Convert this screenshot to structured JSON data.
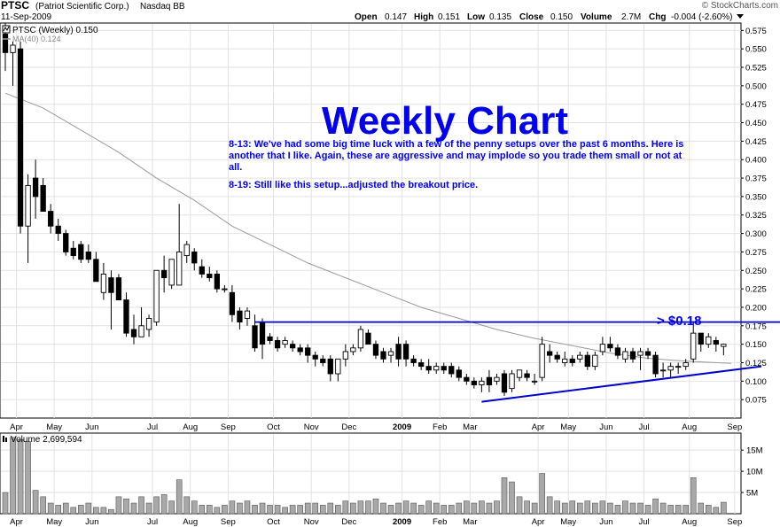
{
  "header": {
    "ticker": "PTSC",
    "company": "(Patriot Scientific Corp.)",
    "exchange": "Nasdaq BB",
    "date": "11-Sep-2009",
    "brand": "© StockCharts.com",
    "quote": {
      "open_label": "Open",
      "open": "0.147",
      "high_label": "High",
      "high": "0.151",
      "low_label": "Low",
      "low": "0.135",
      "close_label": "Close",
      "close": "0.150",
      "volume_label": "Volume",
      "volume": "2.7M",
      "chg_label": "Chg",
      "chg": "-0.004 (-2.60%)"
    }
  },
  "legend": {
    "price": "PTSC (Weekly) 0.150",
    "ma": "MA(40) 0.124",
    "volume": "Volume 2,699,594"
  },
  "annotation": {
    "title": "Weekly Chart",
    "note1": "8-13: We've had some big time luck with a few of the penny setups over the past 6 months. Here is another that I like. Again, these are aggressive and may implode so you trade them small or not at all.",
    "note2": "8-19: Still like this setup...adjusted the breakout price.",
    "breakout_label": "> $0.18"
  },
  "colors": {
    "text_blue": "#0000ee",
    "line_blue": "#0000cc",
    "ma_gray": "#9a9a9a",
    "candle": "#000000",
    "volume_bar": "#a8a8a8",
    "grid": "#e2e2e2"
  },
  "chart_data": {
    "type": "candlestick",
    "price_axis": {
      "ylim": [
        0.05,
        0.585
      ],
      "ticks": [
        "0.575",
        "0.550",
        "0.525",
        "0.500",
        "0.475",
        "0.450",
        "0.425",
        "0.400",
        "0.375",
        "0.350",
        "0.325",
        "0.300",
        "0.275",
        "0.250",
        "0.225",
        "0.200",
        "0.175",
        "0.150",
        "0.125",
        "0.100",
        "0.075"
      ]
    },
    "volume_axis": {
      "ylim": [
        0,
        19000000
      ],
      "ticks": [
        {
          "label": "15M",
          "value": 15000000
        },
        {
          "label": "10M",
          "value": 10000000
        },
        {
          "label": "5M",
          "value": 5000000
        }
      ]
    },
    "x_labels": [
      {
        "label": "Apr",
        "week": 1
      },
      {
        "label": "May",
        "week": 6
      },
      {
        "label": "Jun",
        "week": 11
      },
      {
        "label": "Jul",
        "week": 19
      },
      {
        "label": "Aug",
        "week": 24
      },
      {
        "label": "Sep",
        "week": 29
      },
      {
        "label": "Oct",
        "week": 35
      },
      {
        "label": "Nov",
        "week": 40
      },
      {
        "label": "Dec",
        "week": 45
      },
      {
        "label": "2009",
        "week": 52,
        "bold": true
      },
      {
        "label": "Feb",
        "week": 57
      },
      {
        "label": "Mar",
        "week": 61
      },
      {
        "label": "Apr",
        "week": 70
      },
      {
        "label": "May",
        "week": 74
      },
      {
        "label": "Jun",
        "week": 79
      },
      {
        "label": "Jul",
        "week": 84
      },
      {
        "label": "Aug",
        "week": 90
      },
      {
        "label": "Sep",
        "week": 96
      }
    ],
    "weeks": [
      {
        "o": 0.57,
        "h": 0.585,
        "l": 0.52,
        "c": 0.545,
        "v": 5.0
      },
      {
        "o": 0.545,
        "h": 0.56,
        "l": 0.5,
        "c": 0.555,
        "v": 18.0
      },
      {
        "o": 0.55,
        "h": 0.56,
        "l": 0.3,
        "c": 0.31,
        "v": 17.5
      },
      {
        "o": 0.31,
        "h": 0.38,
        "l": 0.26,
        "c": 0.365,
        "v": 17.0
      },
      {
        "o": 0.375,
        "h": 0.4,
        "l": 0.32,
        "c": 0.35,
        "v": 5.5
      },
      {
        "o": 0.365,
        "h": 0.375,
        "l": 0.33,
        "c": 0.33,
        "v": 4.0
      },
      {
        "o": 0.33,
        "h": 0.34,
        "l": 0.3,
        "c": 0.31,
        "v": 2.5
      },
      {
        "o": 0.31,
        "h": 0.32,
        "l": 0.29,
        "c": 0.3,
        "v": 2.0
      },
      {
        "o": 0.3,
        "h": 0.305,
        "l": 0.27,
        "c": 0.275,
        "v": 2.5
      },
      {
        "o": 0.28,
        "h": 0.29,
        "l": 0.265,
        "c": 0.27,
        "v": 1.5
      },
      {
        "o": 0.285,
        "h": 0.29,
        "l": 0.26,
        "c": 0.265,
        "v": 2.0
      },
      {
        "o": 0.275,
        "h": 0.285,
        "l": 0.26,
        "c": 0.265,
        "v": 2.5
      },
      {
        "o": 0.265,
        "h": 0.275,
        "l": 0.235,
        "c": 0.235,
        "v": 1.5
      },
      {
        "o": 0.22,
        "h": 0.26,
        "l": 0.21,
        "c": 0.245,
        "v": 1.5
      },
      {
        "o": 0.24,
        "h": 0.25,
        "l": 0.17,
        "c": 0.22,
        "v": 1.0
      },
      {
        "o": 0.24,
        "h": 0.245,
        "l": 0.21,
        "c": 0.21,
        "v": 4.0
      },
      {
        "o": 0.21,
        "h": 0.22,
        "l": 0.16,
        "c": 0.165,
        "v": 3.5
      },
      {
        "o": 0.17,
        "h": 0.19,
        "l": 0.15,
        "c": 0.16,
        "v": 2.5
      },
      {
        "o": 0.16,
        "h": 0.2,
        "l": 0.16,
        "c": 0.175,
        "v": 4.0
      },
      {
        "o": 0.17,
        "h": 0.19,
        "l": 0.16,
        "c": 0.185,
        "v": 2.5
      },
      {
        "o": 0.18,
        "h": 0.25,
        "l": 0.175,
        "c": 0.25,
        "v": 4.0
      },
      {
        "o": 0.25,
        "h": 0.27,
        "l": 0.22,
        "c": 0.24,
        "v": 4.5
      },
      {
        "o": 0.23,
        "h": 0.26,
        "l": 0.225,
        "c": 0.265,
        "v": 3.0
      },
      {
        "o": 0.23,
        "h": 0.34,
        "l": 0.23,
        "c": 0.275,
        "v": 8.0
      },
      {
        "o": 0.27,
        "h": 0.29,
        "l": 0.26,
        "c": 0.285,
        "v": 4.0
      },
      {
        "o": 0.275,
        "h": 0.28,
        "l": 0.25,
        "c": 0.26,
        "v": 3.0
      },
      {
        "o": 0.255,
        "h": 0.265,
        "l": 0.24,
        "c": 0.245,
        "v": 2.0
      },
      {
        "o": 0.245,
        "h": 0.255,
        "l": 0.235,
        "c": 0.24,
        "v": 2.0
      },
      {
        "o": 0.245,
        "h": 0.25,
        "l": 0.22,
        "c": 0.225,
        "v": 1.5
      },
      {
        "o": 0.225,
        "h": 0.23,
        "l": 0.22,
        "c": 0.225,
        "v": 2.0
      },
      {
        "o": 0.22,
        "h": 0.23,
        "l": 0.18,
        "c": 0.19,
        "v": 3.0
      },
      {
        "o": 0.195,
        "h": 0.2,
        "l": 0.17,
        "c": 0.18,
        "v": 2.5
      },
      {
        "o": 0.185,
        "h": 0.2,
        "l": 0.175,
        "c": 0.195,
        "v": 3.0
      },
      {
        "o": 0.175,
        "h": 0.19,
        "l": 0.14,
        "c": 0.145,
        "v": 2.0
      },
      {
        "o": 0.18,
        "h": 0.185,
        "l": 0.13,
        "c": 0.15,
        "v": 2.5
      },
      {
        "o": 0.16,
        "h": 0.165,
        "l": 0.15,
        "c": 0.155,
        "v": 2.0
      },
      {
        "o": 0.155,
        "h": 0.16,
        "l": 0.14,
        "c": 0.145,
        "v": 2.0
      },
      {
        "o": 0.15,
        "h": 0.16,
        "l": 0.145,
        "c": 0.155,
        "v": 1.5
      },
      {
        "o": 0.15,
        "h": 0.155,
        "l": 0.14,
        "c": 0.145,
        "v": 2.0
      },
      {
        "o": 0.145,
        "h": 0.15,
        "l": 0.135,
        "c": 0.14,
        "v": 2.0
      },
      {
        "o": 0.145,
        "h": 0.15,
        "l": 0.125,
        "c": 0.135,
        "v": 2.5
      },
      {
        "o": 0.135,
        "h": 0.14,
        "l": 0.12,
        "c": 0.13,
        "v": 2.5
      },
      {
        "o": 0.13,
        "h": 0.135,
        "l": 0.12,
        "c": 0.125,
        "v": 2.0
      },
      {
        "o": 0.13,
        "h": 0.135,
        "l": 0.1,
        "c": 0.11,
        "v": 2.5
      },
      {
        "o": 0.11,
        "h": 0.13,
        "l": 0.1,
        "c": 0.13,
        "v": 2.0
      },
      {
        "o": 0.13,
        "h": 0.15,
        "l": 0.12,
        "c": 0.14,
        "v": 3.0
      },
      {
        "o": 0.14,
        "h": 0.15,
        "l": 0.135,
        "c": 0.145,
        "v": 2.5
      },
      {
        "o": 0.145,
        "h": 0.175,
        "l": 0.14,
        "c": 0.17,
        "v": 3.0
      },
      {
        "o": 0.165,
        "h": 0.17,
        "l": 0.15,
        "c": 0.15,
        "v": 3.0
      },
      {
        "o": 0.15,
        "h": 0.155,
        "l": 0.13,
        "c": 0.135,
        "v": 3.5
      },
      {
        "o": 0.14,
        "h": 0.145,
        "l": 0.125,
        "c": 0.13,
        "v": 2.5
      },
      {
        "o": 0.135,
        "h": 0.145,
        "l": 0.125,
        "c": 0.14,
        "v": 2.0
      },
      {
        "o": 0.15,
        "h": 0.16,
        "l": 0.12,
        "c": 0.13,
        "v": 2.5
      },
      {
        "o": 0.15,
        "h": 0.155,
        "l": 0.12,
        "c": 0.13,
        "v": 3.0
      },
      {
        "o": 0.13,
        "h": 0.135,
        "l": 0.12,
        "c": 0.125,
        "v": 2.5
      },
      {
        "o": 0.125,
        "h": 0.13,
        "l": 0.115,
        "c": 0.12,
        "v": 2.0
      },
      {
        "o": 0.12,
        "h": 0.13,
        "l": 0.11,
        "c": 0.115,
        "v": 3.0
      },
      {
        "o": 0.115,
        "h": 0.125,
        "l": 0.11,
        "c": 0.12,
        "v": 2.5
      },
      {
        "o": 0.12,
        "h": 0.125,
        "l": 0.11,
        "c": 0.115,
        "v": 2.0
      },
      {
        "o": 0.12,
        "h": 0.125,
        "l": 0.105,
        "c": 0.11,
        "v": 2.0
      },
      {
        "o": 0.115,
        "h": 0.12,
        "l": 0.1,
        "c": 0.105,
        "v": 2.5
      },
      {
        "o": 0.105,
        "h": 0.11,
        "l": 0.095,
        "c": 0.1,
        "v": 3.0
      },
      {
        "o": 0.1,
        "h": 0.105,
        "l": 0.09,
        "c": 0.095,
        "v": 2.5
      },
      {
        "o": 0.095,
        "h": 0.105,
        "l": 0.085,
        "c": 0.1,
        "v": 3.0
      },
      {
        "o": 0.105,
        "h": 0.115,
        "l": 0.085,
        "c": 0.095,
        "v": 2.5
      },
      {
        "o": 0.1,
        "h": 0.11,
        "l": 0.095,
        "c": 0.105,
        "v": 3.0
      },
      {
        "o": 0.11,
        "h": 0.115,
        "l": 0.08,
        "c": 0.085,
        "v": 8.5
      },
      {
        "o": 0.09,
        "h": 0.115,
        "l": 0.085,
        "c": 0.11,
        "v": 7.5
      },
      {
        "o": 0.105,
        "h": 0.115,
        "l": 0.1,
        "c": 0.115,
        "v": 4.0
      },
      {
        "o": 0.11,
        "h": 0.115,
        "l": 0.1,
        "c": 0.105,
        "v": 3.0
      },
      {
        "o": 0.1,
        "h": 0.11,
        "l": 0.095,
        "c": 0.1,
        "v": 2.5
      },
      {
        "o": 0.105,
        "h": 0.16,
        "l": 0.1,
        "c": 0.15,
        "v": 9.5
      },
      {
        "o": 0.14,
        "h": 0.15,
        "l": 0.125,
        "c": 0.135,
        "v": 4.0
      },
      {
        "o": 0.135,
        "h": 0.14,
        "l": 0.125,
        "c": 0.13,
        "v": 3.0
      },
      {
        "o": 0.125,
        "h": 0.14,
        "l": 0.12,
        "c": 0.13,
        "v": 2.5
      },
      {
        "o": 0.13,
        "h": 0.135,
        "l": 0.12,
        "c": 0.125,
        "v": 3.0
      },
      {
        "o": 0.13,
        "h": 0.14,
        "l": 0.125,
        "c": 0.135,
        "v": 2.5
      },
      {
        "o": 0.135,
        "h": 0.14,
        "l": 0.115,
        "c": 0.12,
        "v": 3.0
      },
      {
        "o": 0.12,
        "h": 0.14,
        "l": 0.115,
        "c": 0.135,
        "v": 2.5
      },
      {
        "o": 0.14,
        "h": 0.16,
        "l": 0.135,
        "c": 0.15,
        "v": 3.0
      },
      {
        "o": 0.15,
        "h": 0.16,
        "l": 0.14,
        "c": 0.145,
        "v": 2.5
      },
      {
        "o": 0.145,
        "h": 0.15,
        "l": 0.13,
        "c": 0.135,
        "v": 2.0
      },
      {
        "o": 0.13,
        "h": 0.145,
        "l": 0.125,
        "c": 0.14,
        "v": 3.0
      },
      {
        "o": 0.14,
        "h": 0.145,
        "l": 0.125,
        "c": 0.13,
        "v": 2.5
      },
      {
        "o": 0.135,
        "h": 0.145,
        "l": 0.115,
        "c": 0.14,
        "v": 2.5
      },
      {
        "o": 0.14,
        "h": 0.145,
        "l": 0.13,
        "c": 0.135,
        "v": 2.0
      },
      {
        "o": 0.135,
        "h": 0.14,
        "l": 0.105,
        "c": 0.11,
        "v": 3.5
      },
      {
        "o": 0.115,
        "h": 0.125,
        "l": 0.105,
        "c": 0.115,
        "v": 2.5
      },
      {
        "o": 0.115,
        "h": 0.125,
        "l": 0.105,
        "c": 0.12,
        "v": 2.0
      },
      {
        "o": 0.12,
        "h": 0.125,
        "l": 0.11,
        "c": 0.12,
        "v": 2.0
      },
      {
        "o": 0.12,
        "h": 0.13,
        "l": 0.115,
        "c": 0.125,
        "v": 2.0
      },
      {
        "o": 0.13,
        "h": 0.18,
        "l": 0.125,
        "c": 0.165,
        "v": 8.5
      },
      {
        "o": 0.165,
        "h": 0.165,
        "l": 0.14,
        "c": 0.15,
        "v": 2.5
      },
      {
        "o": 0.15,
        "h": 0.165,
        "l": 0.145,
        "c": 0.16,
        "v": 2.0
      },
      {
        "o": 0.155,
        "h": 0.16,
        "l": 0.14,
        "c": 0.15,
        "v": 1.5
      },
      {
        "o": 0.147,
        "h": 0.151,
        "l": 0.135,
        "c": 0.15,
        "v": 2.7
      }
    ],
    "ma40": [
      [
        0,
        0.49
      ],
      [
        5,
        0.47
      ],
      [
        10,
        0.44
      ],
      [
        15,
        0.41
      ],
      [
        20,
        0.375
      ],
      [
        25,
        0.345
      ],
      [
        30,
        0.31
      ],
      [
        35,
        0.285
      ],
      [
        40,
        0.26
      ],
      [
        45,
        0.24
      ],
      [
        50,
        0.22
      ],
      [
        55,
        0.2
      ],
      [
        60,
        0.185
      ],
      [
        65,
        0.17
      ],
      [
        70,
        0.158
      ],
      [
        75,
        0.148
      ],
      [
        80,
        0.138
      ],
      [
        85,
        0.131
      ],
      [
        90,
        0.127
      ],
      [
        96,
        0.124
      ]
    ],
    "breakout_level": 0.18,
    "trendline": [
      [
        63,
        0.072
      ],
      [
        100,
        0.12
      ]
    ]
  }
}
